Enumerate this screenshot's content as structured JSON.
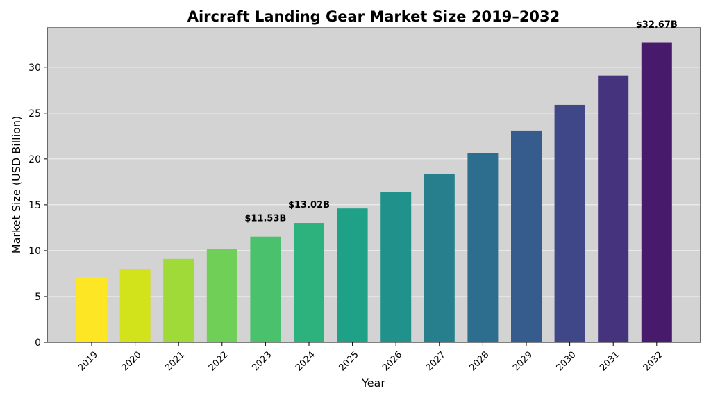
{
  "chart_data": {
    "type": "bar",
    "title": "Aircraft Landing Gear Market Size 2019–2032",
    "xlabel": "Year",
    "ylabel": "Market Size (USD Billion)",
    "categories": [
      "2019",
      "2020",
      "2021",
      "2022",
      "2023",
      "2024",
      "2025",
      "2026",
      "2027",
      "2028",
      "2029",
      "2030",
      "2031",
      "2032"
    ],
    "values": [
      7.1,
      8.0,
      9.1,
      10.2,
      11.53,
      13.02,
      14.6,
      16.4,
      18.4,
      20.6,
      23.1,
      25.9,
      29.1,
      32.67
    ],
    "colors": [
      "#fde725",
      "#d2e21b",
      "#a0da39",
      "#70cf57",
      "#4ac16d",
      "#2db27d",
      "#1fa187",
      "#21918c",
      "#277f8e",
      "#2d6e8e",
      "#365c8d",
      "#3f4788",
      "#46337e",
      "#481a6c"
    ],
    "ylim": [
      0,
      34.3
    ],
    "yticks": [
      0,
      5,
      10,
      15,
      20,
      25,
      30
    ],
    "grid": true,
    "background": "#d3d3d3",
    "grid_color": "#ffffff",
    "annotations": [
      {
        "category": "2023",
        "text": "$11.53B"
      },
      {
        "category": "2024",
        "text": "$13.02B"
      },
      {
        "category": "2032",
        "text": "$32.67B"
      }
    ]
  }
}
